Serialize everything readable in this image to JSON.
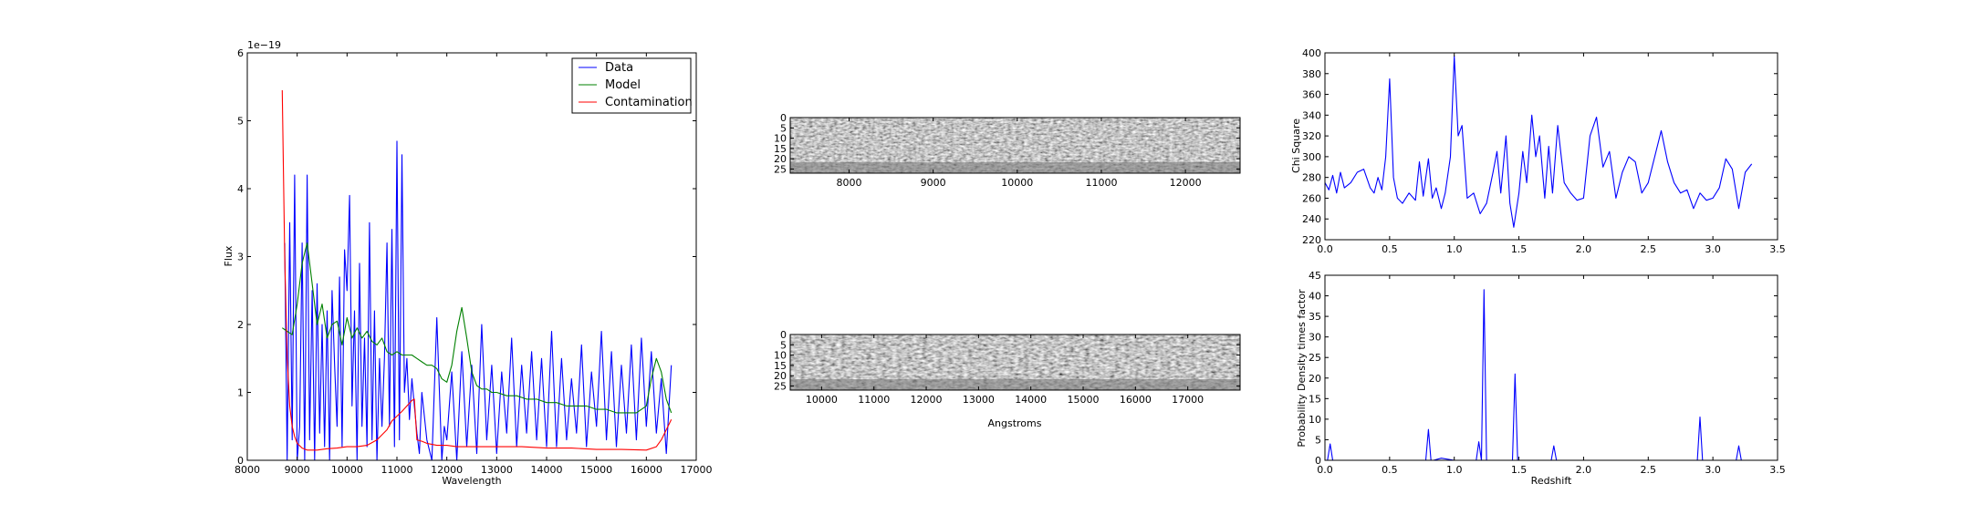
{
  "chart_data": [
    {
      "id": "spectrum",
      "type": "line",
      "title": "",
      "xlabel": "Wavelength",
      "ylabel": "Flux",
      "offset_label": "1e−19",
      "xlim": [
        8000,
        17000
      ],
      "ylim": [
        0,
        6
      ],
      "xticks": [
        8000,
        9000,
        10000,
        11000,
        12000,
        13000,
        14000,
        15000,
        16000,
        17000
      ],
      "yticks": [
        0,
        1,
        2,
        3,
        4,
        5,
        6
      ],
      "legend_position": "top-right",
      "series": [
        {
          "name": "Data",
          "color": "#0000ff",
          "x": [
            8750,
            8800,
            8850,
            8900,
            8950,
            9000,
            9050,
            9100,
            9150,
            9200,
            9250,
            9300,
            9350,
            9400,
            9450,
            9500,
            9550,
            9600,
            9650,
            9700,
            9750,
            9800,
            9850,
            9900,
            9950,
            10000,
            10050,
            10100,
            10150,
            10200,
            10250,
            10300,
            10350,
            10400,
            10450,
            10500,
            10550,
            10600,
            10650,
            10700,
            10750,
            10800,
            10850,
            10900,
            10950,
            11000,
            11050,
            11100,
            11150,
            11200,
            11250,
            11300,
            11350,
            11400,
            11450,
            11500,
            11600,
            11700,
            11800,
            11900,
            11950,
            12000,
            12100,
            12200,
            12300,
            12400,
            12500,
            12600,
            12700,
            12800,
            12900,
            13000,
            13100,
            13200,
            13300,
            13400,
            13500,
            13600,
            13700,
            13800,
            13900,
            14000,
            14100,
            14200,
            14300,
            14400,
            14500,
            14600,
            14700,
            14800,
            14900,
            15000,
            15100,
            15200,
            15300,
            15400,
            15500,
            15600,
            15700,
            15800,
            15900,
            16000,
            16100,
            16200,
            16300,
            16400,
            16500
          ],
          "y": [
            3.2,
            0,
            3.5,
            0.3,
            4.2,
            0,
            0.5,
            3.2,
            0,
            4.2,
            0.3,
            2.5,
            0,
            2.6,
            0.4,
            2.0,
            0.2,
            2.2,
            0,
            2.5,
            1.4,
            0.5,
            2.7,
            0.2,
            3.1,
            2.5,
            3.9,
            0.8,
            2.2,
            0,
            2.9,
            0.5,
            1.8,
            0.2,
            3.5,
            0.3,
            2.2,
            0,
            1.5,
            0.5,
            1.5,
            3.2,
            0.5,
            3.4,
            0.2,
            4.7,
            0.3,
            4.5,
            1.0,
            1.5,
            0.6,
            1.2,
            0.8,
            0.4,
            0.1,
            1.0,
            0.3,
            0,
            2.1,
            0,
            0.5,
            0.3,
            1.3,
            0,
            1.6,
            0.2,
            1.4,
            0.1,
            2.0,
            0.3,
            1.4,
            0.1,
            1.3,
            0.4,
            1.8,
            0.2,
            1.4,
            0.4,
            1.6,
            0.3,
            1.5,
            0.2,
            1.9,
            0.2,
            1.5,
            0.3,
            1.2,
            0.4,
            1.7,
            0.2,
            1.3,
            0.5,
            1.9,
            0.3,
            1.6,
            0.2,
            1.4,
            0.4,
            1.7,
            0.3,
            1.8,
            0.5,
            1.6,
            0.4,
            1.2,
            0.1,
            1.4
          ]
        },
        {
          "name": "Model",
          "color": "#008000",
          "x": [
            8700,
            8800,
            8900,
            9000,
            9100,
            9200,
            9300,
            9400,
            9500,
            9600,
            9700,
            9800,
            9900,
            10000,
            10100,
            10200,
            10300,
            10400,
            10500,
            10600,
            10700,
            10800,
            10900,
            11000,
            11100,
            11200,
            11300,
            11400,
            11500,
            11600,
            11700,
            11800,
            11900,
            12000,
            12100,
            12200,
            12300,
            12400,
            12500,
            12600,
            12700,
            12800,
            12900,
            13000,
            13200,
            13400,
            13600,
            13800,
            14000,
            14200,
            14400,
            14600,
            14800,
            15000,
            15200,
            15400,
            15600,
            15800,
            16000,
            16100,
            16200,
            16300,
            16400,
            16500
          ],
          "y": [
            1.95,
            1.9,
            1.85,
            2.3,
            2.9,
            3.2,
            2.6,
            2.0,
            2.3,
            1.8,
            2.0,
            2.05,
            1.7,
            2.1,
            1.8,
            1.95,
            1.8,
            1.9,
            1.75,
            1.7,
            1.8,
            1.6,
            1.55,
            1.6,
            1.55,
            1.55,
            1.55,
            1.5,
            1.45,
            1.4,
            1.4,
            1.35,
            1.2,
            1.15,
            1.4,
            1.9,
            2.25,
            1.8,
            1.3,
            1.1,
            1.05,
            1.05,
            1.0,
            1.0,
            0.95,
            0.95,
            0.9,
            0.9,
            0.85,
            0.85,
            0.8,
            0.8,
            0.8,
            0.75,
            0.75,
            0.7,
            0.7,
            0.7,
            0.8,
            1.2,
            1.5,
            1.3,
            0.9,
            0.7
          ]
        },
        {
          "name": "Contamination",
          "color": "#ff0000",
          "x": [
            8700,
            8750,
            8800,
            8850,
            8900,
            8950,
            9000,
            9100,
            9200,
            9400,
            9600,
            9800,
            10000,
            10200,
            10400,
            10600,
            10800,
            10900,
            11000,
            11100,
            11200,
            11300,
            11350,
            11400,
            11500,
            11600,
            11800,
            12000,
            12200,
            12400,
            12600,
            12800,
            13000,
            13500,
            14000,
            14500,
            15000,
            15500,
            16000,
            16200,
            16300,
            16400,
            16500
          ],
          "y": [
            5.45,
            3.0,
            1.5,
            0.8,
            0.5,
            0.35,
            0.25,
            0.18,
            0.15,
            0.15,
            0.17,
            0.18,
            0.2,
            0.2,
            0.22,
            0.3,
            0.45,
            0.58,
            0.65,
            0.72,
            0.8,
            0.88,
            0.9,
            0.3,
            0.28,
            0.25,
            0.22,
            0.22,
            0.2,
            0.2,
            0.2,
            0.2,
            0.2,
            0.2,
            0.18,
            0.18,
            0.16,
            0.16,
            0.15,
            0.2,
            0.3,
            0.45,
            0.6
          ]
        }
      ]
    },
    {
      "id": "image-top",
      "type": "heatmap",
      "xlabel": "",
      "xlim": [
        7300,
        12650
      ],
      "ylim": [
        27,
        0
      ],
      "xticks": [
        8000,
        9000,
        10000,
        11000,
        12000
      ],
      "yticks": [
        0,
        5,
        10,
        15,
        20,
        25
      ],
      "colormap": "gray"
    },
    {
      "id": "image-bottom",
      "type": "heatmap",
      "xlabel": "Angstroms",
      "xlim": [
        9400,
        18000
      ],
      "ylim": [
        27,
        0
      ],
      "xticks": [
        10000,
        11000,
        12000,
        13000,
        14000,
        15000,
        16000,
        17000
      ],
      "yticks": [
        0,
        5,
        10,
        15,
        20,
        25
      ],
      "colormap": "gray"
    },
    {
      "id": "chisq",
      "type": "line",
      "xlabel": "",
      "ylabel": "Chi Square",
      "xlim": [
        0,
        3.5
      ],
      "ylim": [
        220,
        400
      ],
      "xticks": [
        0.0,
        0.5,
        1.0,
        1.5,
        2.0,
        2.5,
        3.0,
        3.5
      ],
      "yticks": [
        220,
        240,
        260,
        280,
        300,
        320,
        340,
        360,
        380,
        400
      ],
      "series": [
        {
          "name": "",
          "color": "#0000ff",
          "x": [
            0.0,
            0.03,
            0.06,
            0.09,
            0.12,
            0.15,
            0.2,
            0.25,
            0.3,
            0.35,
            0.38,
            0.41,
            0.44,
            0.47,
            0.5,
            0.53,
            0.56,
            0.6,
            0.65,
            0.7,
            0.73,
            0.76,
            0.8,
            0.83,
            0.86,
            0.9,
            0.93,
            0.97,
            1.0,
            1.03,
            1.06,
            1.1,
            1.15,
            1.2,
            1.25,
            1.3,
            1.33,
            1.36,
            1.4,
            1.43,
            1.46,
            1.5,
            1.53,
            1.56,
            1.6,
            1.63,
            1.66,
            1.7,
            1.73,
            1.76,
            1.8,
            1.85,
            1.9,
            1.95,
            2.0,
            2.05,
            2.1,
            2.15,
            2.2,
            2.25,
            2.3,
            2.35,
            2.4,
            2.45,
            2.5,
            2.55,
            2.6,
            2.65,
            2.7,
            2.75,
            2.8,
            2.85,
            2.9,
            2.95,
            3.0,
            3.05,
            3.1,
            3.15,
            3.2,
            3.25,
            3.3
          ],
          "y": [
            275,
            268,
            282,
            265,
            285,
            270,
            275,
            285,
            288,
            270,
            265,
            280,
            268,
            300,
            375,
            280,
            260,
            255,
            265,
            258,
            295,
            262,
            298,
            260,
            270,
            250,
            265,
            300,
            397,
            320,
            330,
            260,
            265,
            245,
            255,
            285,
            305,
            265,
            320,
            255,
            232,
            265,
            305,
            275,
            340,
            300,
            320,
            260,
            310,
            265,
            330,
            275,
            265,
            258,
            260,
            320,
            338,
            290,
            305,
            260,
            285,
            300,
            295,
            265,
            275,
            300,
            325,
            295,
            275,
            265,
            268,
            250,
            265,
            258,
            260,
            270,
            298,
            288,
            250,
            285,
            293
          ]
        }
      ]
    },
    {
      "id": "pdf",
      "type": "line",
      "xlabel": "Redshift",
      "ylabel": "Probability Density times factor",
      "xlim": [
        0,
        3.5
      ],
      "ylim": [
        0,
        45
      ],
      "xticks": [
        0.0,
        0.5,
        1.0,
        1.5,
        2.0,
        2.5,
        3.0,
        3.5
      ],
      "yticks": [
        0,
        5,
        10,
        15,
        20,
        25,
        30,
        35,
        40,
        45
      ],
      "series": [
        {
          "name": "",
          "color": "#0000ff",
          "x": [
            0.0,
            0.02,
            0.04,
            0.06,
            0.1,
            0.5,
            0.78,
            0.8,
            0.82,
            0.84,
            0.9,
            1.0,
            1.1,
            1.17,
            1.19,
            1.21,
            1.23,
            1.25,
            1.27,
            1.35,
            1.45,
            1.47,
            1.49,
            1.6,
            1.75,
            1.77,
            1.79,
            2.0,
            2.5,
            2.86,
            2.88,
            2.9,
            2.92,
            3.15,
            3.18,
            3.2,
            3.22,
            3.3,
            3.35
          ],
          "y": [
            0,
            0,
            4,
            0,
            0,
            0,
            0,
            7.5,
            0,
            0,
            0.5,
            0,
            0,
            0,
            4.5,
            0,
            41.5,
            0,
            0,
            0,
            0,
            21,
            0,
            0,
            0,
            3.5,
            0,
            0,
            0,
            0,
            0,
            10.5,
            0,
            0,
            0,
            3.5,
            0,
            0,
            0
          ]
        }
      ]
    }
  ]
}
